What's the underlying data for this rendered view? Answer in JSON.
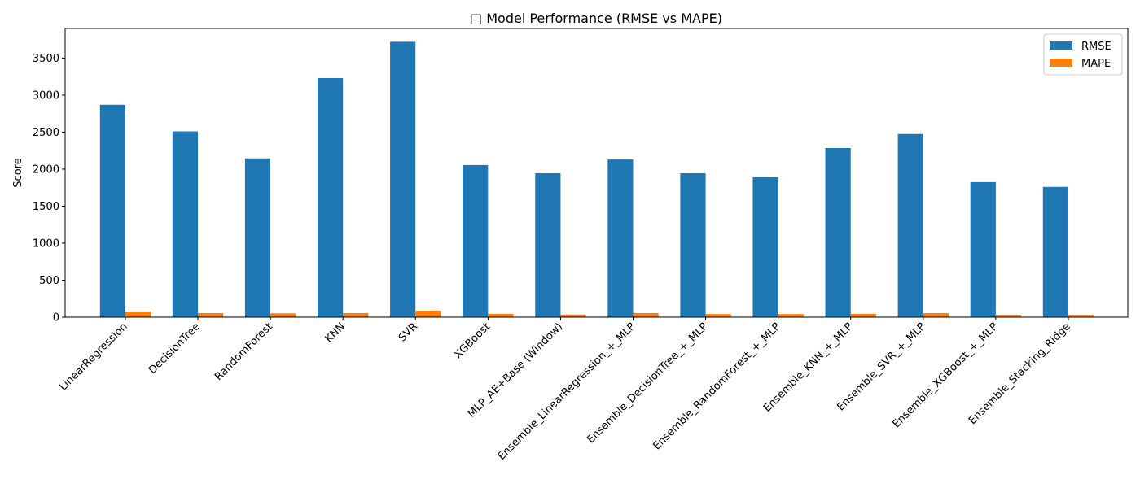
{
  "chart_data": {
    "type": "bar",
    "title": "□ Model Performance (RMSE vs MAPE)",
    "xlabel": "",
    "ylabel": "Score",
    "ylim": [
      0,
      3900
    ],
    "yticks": [
      0,
      500,
      1000,
      1500,
      2000,
      2500,
      3000,
      3500
    ],
    "grid": false,
    "legend_position": "top-right",
    "categories": [
      "LinearRegression",
      "DecisionTree",
      "RandomForest",
      "KNN",
      "SVR",
      "XGBoost",
      "MLP_AE+Base (Window)",
      "Ensemble_LinearRegression_+_MLP",
      "Ensemble_DecisionTree_+_MLP",
      "Ensemble_RandomForest_+_MLP",
      "Ensemble_KNN_+_MLP",
      "Ensemble_SVR_+_MLP",
      "Ensemble_XGBoost_+_MLP",
      "Ensemble_Stacking_Ridge"
    ],
    "series": [
      {
        "name": "RMSE",
        "color": "#1f77b4",
        "values": [
          2870,
          2510,
          2145,
          3230,
          3720,
          2055,
          1945,
          2130,
          1945,
          1890,
          2285,
          2475,
          1825,
          1760
        ]
      },
      {
        "name": "MAPE",
        "color": "#ff7f0e",
        "values": [
          78,
          55,
          52,
          55,
          88,
          45,
          35,
          55,
          42,
          42,
          45,
          55,
          33,
          32
        ]
      }
    ]
  }
}
